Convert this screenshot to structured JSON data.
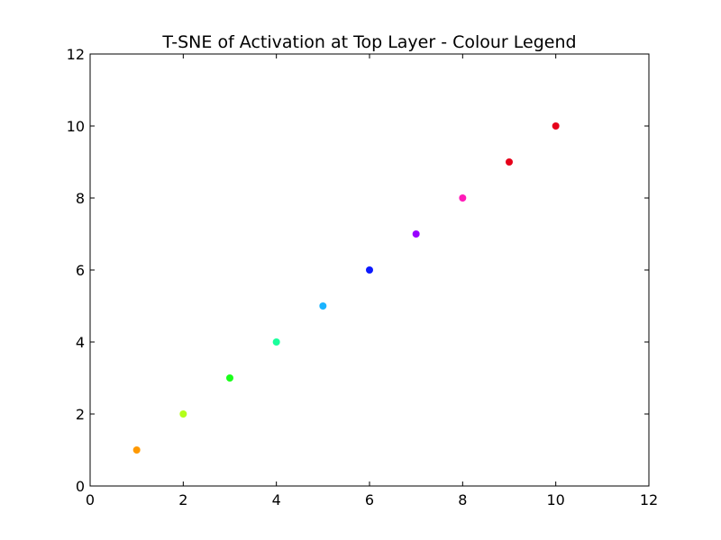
{
  "chart_data": {
    "type": "scatter",
    "title": "T-SNE of Activation at Top Layer - Colour Legend",
    "xlabel": "",
    "ylabel": "",
    "xlim": [
      0,
      12
    ],
    "ylim": [
      0,
      12
    ],
    "xticks": [
      0,
      2,
      4,
      6,
      8,
      10,
      12
    ],
    "yticks": [
      0,
      2,
      4,
      6,
      8,
      10,
      12
    ],
    "grid": false,
    "points": [
      {
        "x": 1,
        "y": 1,
        "color": "#ff9900"
      },
      {
        "x": 2,
        "y": 2,
        "color": "#b3ff1a"
      },
      {
        "x": 3,
        "y": 3,
        "color": "#1aff1a"
      },
      {
        "x": 4,
        "y": 4,
        "color": "#1aff9c"
      },
      {
        "x": 5,
        "y": 5,
        "color": "#1ab3ff"
      },
      {
        "x": 6,
        "y": 6,
        "color": "#0d1aff"
      },
      {
        "x": 7,
        "y": 7,
        "color": "#9900ff"
      },
      {
        "x": 8,
        "y": 8,
        "color": "#ff1ab8"
      },
      {
        "x": 9,
        "y": 9,
        "color": "#e6001a"
      },
      {
        "x": 10,
        "y": 10,
        "color": "#e6001a"
      }
    ]
  }
}
